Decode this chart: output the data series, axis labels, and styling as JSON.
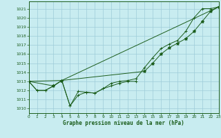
{
  "title": "Graphe pression niveau de la mer (hPa)",
  "background_color": "#c8ecf0",
  "grid_color": "#9eccd8",
  "line_color": "#1a5c1a",
  "xlim": [
    0,
    23
  ],
  "ylim": [
    1009.5,
    1021.8
  ],
  "yticks": [
    1010,
    1011,
    1012,
    1013,
    1014,
    1015,
    1016,
    1017,
    1018,
    1019,
    1020,
    1021
  ],
  "xticks": [
    0,
    1,
    2,
    3,
    4,
    5,
    6,
    7,
    8,
    9,
    10,
    11,
    12,
    13,
    14,
    15,
    16,
    17,
    18,
    19,
    20,
    21,
    22,
    23
  ],
  "series": [
    {
      "x": [
        0,
        1,
        2,
        3,
        4,
        5,
        6,
        7,
        8,
        9,
        10,
        11,
        12,
        13
      ],
      "y": [
        1013.0,
        1012.0,
        1012.0,
        1012.5,
        1013.1,
        1010.3,
        1011.5,
        1011.8,
        1011.7,
        1012.2,
        1012.5,
        1012.8,
        1013.0,
        1013.0
      ],
      "marker": "+"
    },
    {
      "x": [
        0,
        1,
        2,
        3,
        4,
        5,
        6,
        7,
        8,
        9,
        10,
        11,
        12,
        13,
        14,
        15,
        16,
        17,
        18,
        19,
        20,
        21,
        22,
        23
      ],
      "y": [
        1013.0,
        1012.0,
        1012.0,
        1012.5,
        1013.1,
        1010.3,
        1011.9,
        1011.8,
        1011.7,
        1012.2,
        1012.8,
        1013.0,
        1013.1,
        1013.3,
        1014.5,
        1015.6,
        1016.6,
        1017.1,
        1017.5,
        1018.5,
        1020.0,
        1021.0,
        1021.0,
        1021.2
      ],
      "marker": "+"
    },
    {
      "x": [
        0,
        4,
        23
      ],
      "y": [
        1013.0,
        1013.1,
        1021.2
      ],
      "marker": "+"
    },
    {
      "x": [
        0,
        3,
        4,
        14,
        15,
        16,
        17,
        18,
        19,
        20,
        21,
        22,
        23
      ],
      "y": [
        1013.0,
        1012.5,
        1013.1,
        1014.1,
        1015.0,
        1016.0,
        1016.7,
        1017.2,
        1017.7,
        1018.5,
        1019.6,
        1020.7,
        1021.2
      ],
      "marker": "*"
    }
  ]
}
